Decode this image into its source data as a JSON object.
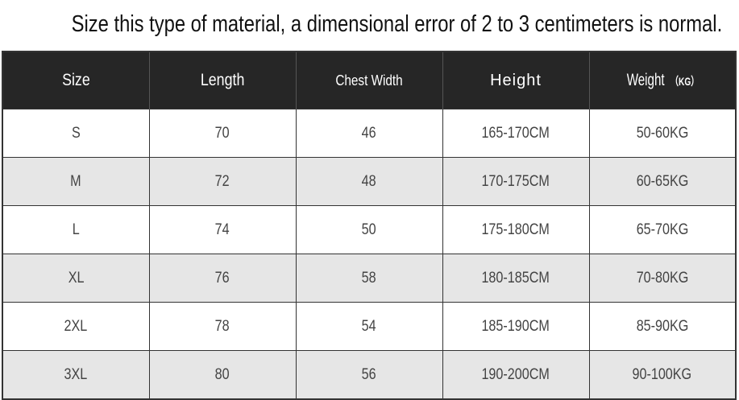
{
  "title": "Size this type of material, a dimensional error of 2 to 3 centimeters is normal.",
  "headers": [
    "Size",
    "Length",
    "Chest Width",
    "Height",
    "Weight"
  ],
  "weight_unit": "（KG）",
  "rows": [
    [
      "S",
      "70",
      "46",
      "165-170CM",
      "50-60KG"
    ],
    [
      "M",
      "72",
      "48",
      "170-175CM",
      "60-65KG"
    ],
    [
      "L",
      "74",
      "50",
      "175-180CM",
      "65-70KG"
    ],
    [
      "XL",
      "76",
      "58",
      "180-185CM",
      "70-80KG"
    ],
    [
      "2XL",
      "78",
      "54",
      "185-190CM",
      "85-90KG"
    ],
    [
      "3XL",
      "80",
      "56",
      "190-200CM",
      "90-100KG"
    ]
  ],
  "colors": {
    "header_bg": "#262626",
    "alt_row_bg": "#e6e6e6"
  }
}
